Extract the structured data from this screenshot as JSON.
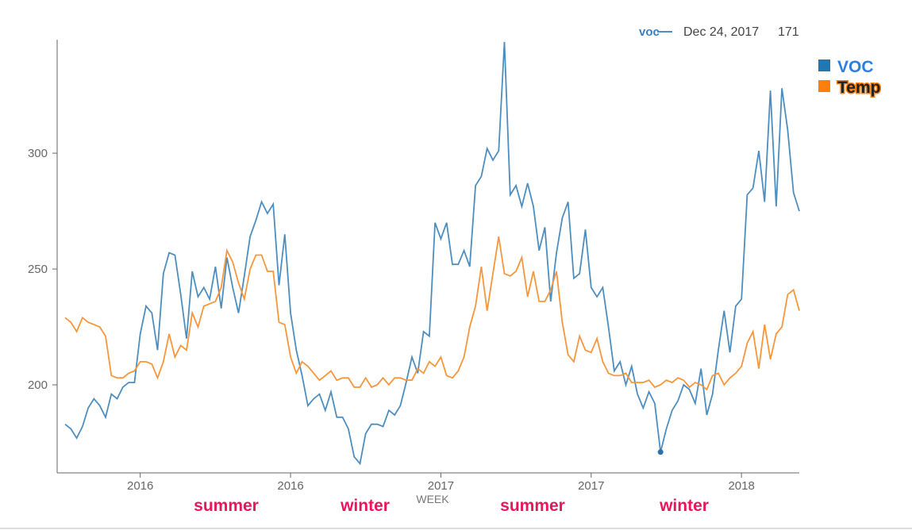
{
  "chart_data": {
    "type": "line",
    "x_label": "WEEK",
    "categories": [
      null,
      null,
      null,
      null,
      null,
      null,
      null,
      null,
      null,
      null,
      null,
      null,
      null,
      "2016",
      null,
      null,
      null,
      null,
      null,
      null,
      null,
      null,
      null,
      null,
      null,
      null,
      null,
      null,
      null,
      null,
      null,
      null,
      null,
      null,
      null,
      null,
      null,
      null,
      null,
      "2016",
      null,
      null,
      null,
      null,
      null,
      null,
      null,
      null,
      null,
      null,
      null,
      null,
      null,
      null,
      null,
      null,
      null,
      null,
      null,
      null,
      null,
      null,
      null,
      null,
      null,
      "2017",
      null,
      null,
      null,
      null,
      null,
      null,
      null,
      null,
      null,
      null,
      null,
      null,
      null,
      null,
      null,
      null,
      null,
      null,
      null,
      null,
      null,
      null,
      null,
      null,
      null,
      "2017",
      null,
      null,
      null,
      null,
      null,
      null,
      null,
      null,
      null,
      null,
      null,
      null,
      null,
      null,
      null,
      null,
      null,
      null,
      null,
      null,
      null,
      null,
      null,
      null,
      null,
      "2018",
      null,
      null,
      null,
      null,
      null,
      null,
      null,
      null,
      null,
      null
    ],
    "series": [
      {
        "name": "VOC",
        "color": "#4d8ec0",
        "legend_color": "#1f77b4",
        "values": [
          183,
          181,
          177,
          182,
          190,
          194,
          191,
          186,
          196,
          194,
          199,
          201,
          201,
          222,
          234,
          231,
          215,
          248,
          257,
          256,
          239,
          220,
          249,
          238,
          242,
          237,
          251,
          233,
          255,
          242,
          231,
          247,
          264,
          271,
          279,
          274,
          278,
          243,
          265,
          231,
          215,
          204,
          191,
          194,
          196,
          189,
          197,
          186,
          186,
          181,
          169,
          166,
          179,
          183,
          183,
          182,
          189,
          187,
          191,
          201,
          212,
          205,
          223,
          221,
          270,
          263,
          270,
          252,
          252,
          258,
          251,
          286,
          290,
          302,
          297,
          301,
          348,
          282,
          286,
          277,
          287,
          277,
          258,
          268,
          236,
          257,
          272,
          279,
          246,
          248,
          267,
          242,
          238,
          242,
          225,
          206,
          210,
          200,
          208,
          196,
          190,
          197,
          192,
          171,
          181,
          189,
          193,
          200,
          198,
          192,
          207,
          187,
          196,
          215,
          232,
          214,
          234,
          237,
          282,
          285,
          301,
          279,
          327,
          277,
          328,
          310,
          283,
          275
        ]
      },
      {
        "name": "Temp",
        "color": "#f7963a",
        "legend_color": "#ff7f0e",
        "values": [
          229,
          227,
          223,
          229,
          227,
          226,
          225,
          221,
          204,
          203,
          203,
          205,
          206,
          210,
          210,
          209,
          203,
          210,
          222,
          212,
          217,
          215,
          231,
          225,
          234,
          235,
          236,
          242,
          258,
          253,
          244,
          237,
          250,
          256,
          256,
          249,
          249,
          227,
          226,
          212,
          205,
          210,
          208,
          205,
          202,
          204,
          206,
          202,
          203,
          203,
          199,
          199,
          203,
          199,
          200,
          203,
          200,
          203,
          203,
          202,
          202,
          207,
          205,
          210,
          208,
          212,
          204,
          203,
          206,
          212,
          225,
          234,
          251,
          232,
          248,
          264,
          248,
          247,
          249,
          255,
          238,
          249,
          236,
          236,
          241,
          249,
          227,
          213,
          210,
          221,
          215,
          214,
          220,
          210,
          205,
          204,
          204,
          205,
          201,
          201,
          201,
          202,
          199,
          200,
          202,
          201,
          203,
          202,
          199,
          201,
          200,
          198,
          204,
          205,
          200,
          203,
          205,
          208,
          218,
          223,
          207,
          226,
          211,
          222,
          225,
          239,
          241,
          232
        ]
      }
    ],
    "ylim": [
      162,
      349
    ],
    "yticks": [
      200,
      250,
      300
    ],
    "annotations": [
      "summer",
      "winter",
      "summer",
      "winter"
    ],
    "tooltip": {
      "series_label": "voc",
      "date": "Dec 24, 2017",
      "value": 171
    }
  }
}
